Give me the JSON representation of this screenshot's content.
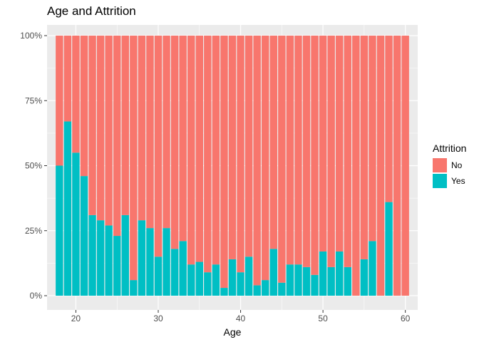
{
  "chart_data": {
    "type": "bar",
    "stacked": "fill",
    "title": "Age and Attrition",
    "xlabel": "Age",
    "ylabel": "",
    "xlim": [
      16.5,
      61.5
    ],
    "ylim": [
      0,
      1
    ],
    "xticks": [
      20,
      30,
      40,
      50,
      60
    ],
    "xtick_labels": [
      "20",
      "30",
      "40",
      "50",
      "60"
    ],
    "yticks": [
      0,
      0.25,
      0.5,
      0.75,
      1
    ],
    "ytick_labels": [
      "0%",
      "25%",
      "50%",
      "75%",
      "100%"
    ],
    "grid": true,
    "legend": {
      "title": "Attrition",
      "position": "right"
    },
    "categories": [
      18,
      19,
      20,
      21,
      22,
      23,
      24,
      25,
      26,
      27,
      28,
      29,
      30,
      31,
      32,
      33,
      34,
      35,
      36,
      37,
      38,
      39,
      40,
      41,
      42,
      43,
      44,
      45,
      46,
      47,
      48,
      49,
      50,
      51,
      52,
      53,
      54,
      55,
      56,
      57,
      58,
      59,
      60
    ],
    "series": [
      {
        "name": "No",
        "color": "#F8766D",
        "values": [
          0.5,
          0.33,
          0.45,
          0.54,
          0.69,
          0.71,
          0.73,
          0.77,
          0.69,
          0.94,
          0.71,
          0.74,
          0.85,
          0.74,
          0.82,
          0.79,
          0.88,
          0.87,
          0.91,
          0.88,
          0.97,
          0.86,
          0.91,
          0.85,
          0.96,
          0.94,
          0.82,
          0.95,
          0.88,
          0.88,
          0.89,
          0.92,
          0.83,
          0.89,
          0.83,
          0.89,
          1.0,
          0.86,
          0.79,
          1.0,
          0.64,
          1.0,
          1.0
        ]
      },
      {
        "name": "Yes",
        "color": "#00BFC4",
        "values": [
          0.5,
          0.67,
          0.55,
          0.46,
          0.31,
          0.29,
          0.27,
          0.23,
          0.31,
          0.06,
          0.29,
          0.26,
          0.15,
          0.26,
          0.18,
          0.21,
          0.12,
          0.13,
          0.09,
          0.12,
          0.03,
          0.14,
          0.09,
          0.15,
          0.04,
          0.06,
          0.18,
          0.05,
          0.12,
          0.12,
          0.11,
          0.08,
          0.17,
          0.11,
          0.17,
          0.11,
          0.0,
          0.14,
          0.21,
          0.0,
          0.36,
          0.0,
          0.0
        ]
      }
    ]
  }
}
